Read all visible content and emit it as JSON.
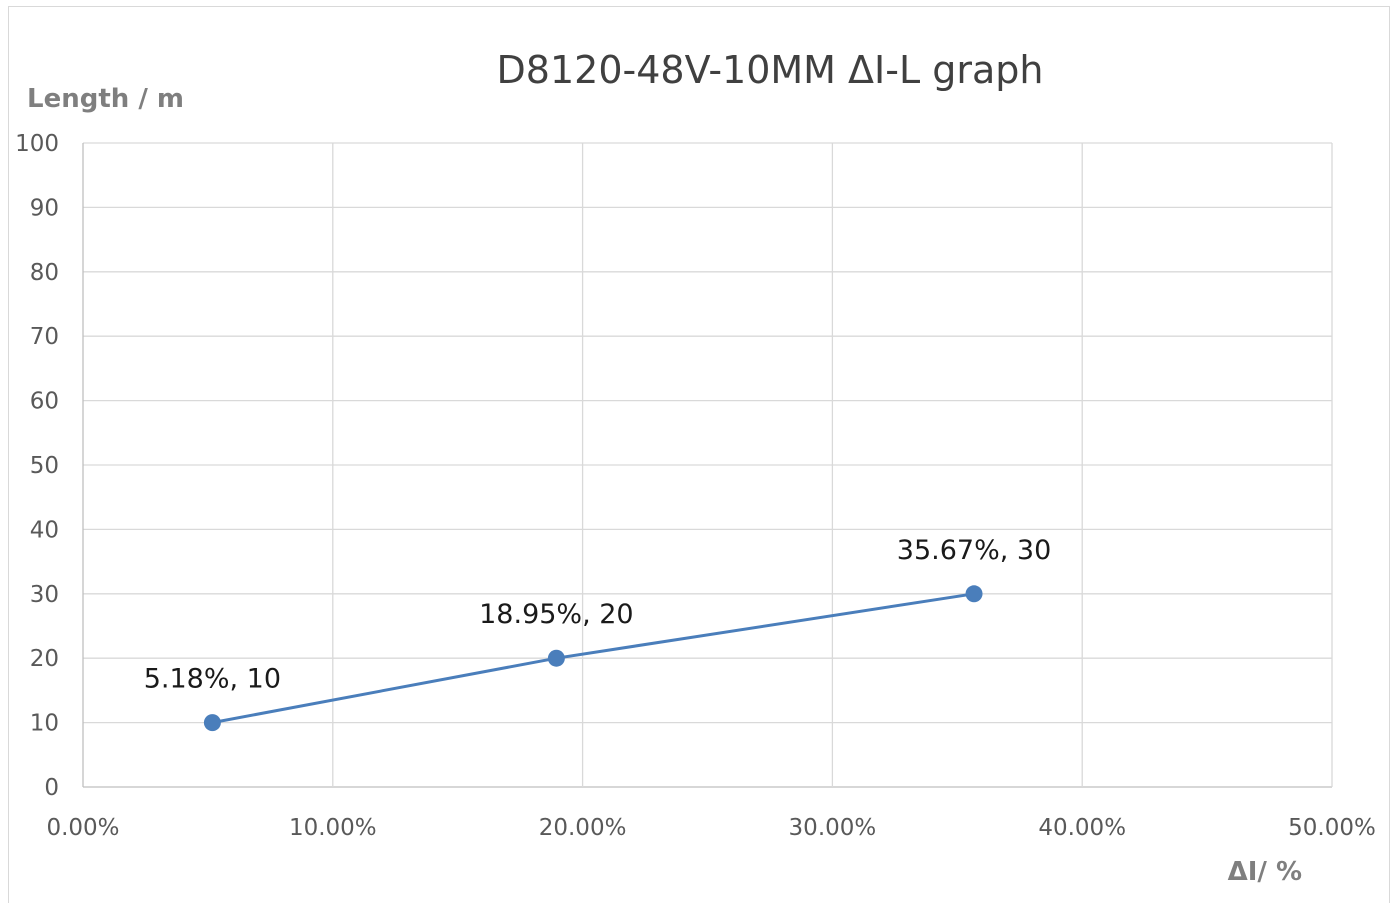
{
  "chart_data": {
    "type": "line",
    "title": "D8120-48V-10MM   ΔI-L graph",
    "xlabel": "ΔI/ %",
    "ylabel": "Length / m",
    "xlim": [
      0,
      0.5
    ],
    "ylim": [
      0,
      100
    ],
    "x_ticks": [
      0,
      0.1,
      0.2,
      0.3,
      0.4,
      0.5
    ],
    "x_tick_labels": [
      "0.00%",
      "10.00%",
      "20.00%",
      "30.00%",
      "40.00%",
      "50.00%"
    ],
    "y_ticks": [
      0,
      10,
      20,
      30,
      40,
      50,
      60,
      70,
      80,
      90,
      100
    ],
    "y_tick_labels": [
      "0",
      "10",
      "20",
      "30",
      "40",
      "50",
      "60",
      "70",
      "80",
      "90",
      "100"
    ],
    "grid": true,
    "legend": "none",
    "series": [
      {
        "color": "#4a7ebb",
        "x": [
          0.0518,
          0.1895,
          0.3567
        ],
        "y": [
          10,
          20,
          30
        ],
        "labels": [
          "5.18%, 10",
          "18.95%, 20",
          "35.67%, 30"
        ]
      }
    ]
  }
}
